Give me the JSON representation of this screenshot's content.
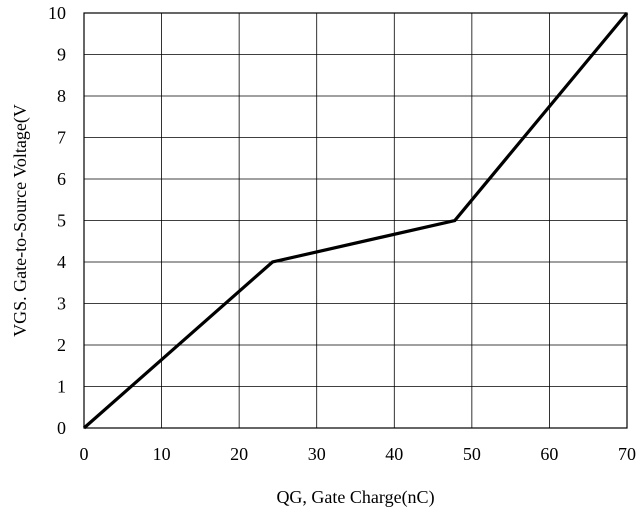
{
  "chart_data": {
    "type": "line",
    "title": "",
    "xlabel": "QG, Gate Charge(nC)",
    "ylabel": "VGS. Gate-to-Source Voltage(V",
    "xlim": [
      0,
      70
    ],
    "ylim": [
      0,
      10
    ],
    "x_ticks": [
      "0",
      "10",
      "20",
      "30",
      "40",
      "50",
      "60",
      "70"
    ],
    "y_ticks": [
      "0",
      "1",
      "2",
      "3",
      "4",
      "5",
      "6",
      "7",
      "8",
      "9",
      "10"
    ],
    "grid": true,
    "series": [
      {
        "x": [
          0,
          24.3,
          47.8,
          70
        ],
        "y": [
          0,
          4,
          5,
          10
        ],
        "color": "#000000"
      }
    ]
  }
}
